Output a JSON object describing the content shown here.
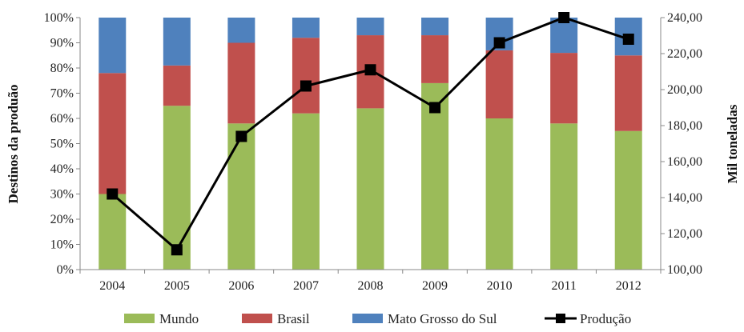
{
  "chart_data": {
    "type": "bar",
    "stacked": true,
    "categories": [
      "2004",
      "2005",
      "2006",
      "2007",
      "2008",
      "2009",
      "2010",
      "2011",
      "2012"
    ],
    "series": [
      {
        "name": "Mundo",
        "kind": "bar",
        "axis": "left",
        "color": "#9bbb59",
        "values": [
          30,
          65,
          58,
          62,
          64,
          74,
          60,
          58,
          55
        ]
      },
      {
        "name": "Brasil",
        "kind": "bar",
        "axis": "left",
        "color": "#c0504d",
        "values": [
          48,
          16,
          32,
          30,
          29,
          19,
          27,
          28,
          30
        ]
      },
      {
        "name": "Mato Grosso do Sul",
        "kind": "bar",
        "axis": "left",
        "color": "#4f81bd",
        "values": [
          22,
          19,
          10,
          8,
          7,
          7,
          13,
          14,
          15
        ]
      },
      {
        "name": "Produção",
        "kind": "line",
        "axis": "right",
        "color": "#000000",
        "values": [
          142,
          111,
          174,
          202,
          211,
          190,
          226,
          240,
          228
        ]
      }
    ],
    "y_left": {
      "label": "Destinos da produão",
      "ylim": [
        0,
        100
      ],
      "ticks": [
        "0%",
        "10%",
        "20%",
        "30%",
        "40%",
        "50%",
        "60%",
        "70%",
        "80%",
        "90%",
        "100%"
      ]
    },
    "y_right": {
      "label": "Mil toneladas",
      "ylim": [
        100,
        240
      ],
      "ticks": [
        "100,00",
        "120,00",
        "140,00",
        "160,00",
        "180,00",
        "200,00",
        "220,00",
        "240,00"
      ]
    },
    "grid": false,
    "legend": "bottom"
  }
}
